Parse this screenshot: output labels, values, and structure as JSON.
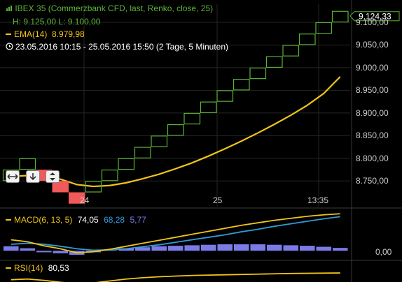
{
  "colors": {
    "background": "#000000",
    "renko_up": "#5cb335",
    "renko_down": "#f05a5a",
    "ema": "#f0c419",
    "macd": "#f0c419",
    "signal": "#2f9bd8",
    "histogram": "#7b7be8",
    "rsi": "#f0c419",
    "grid": "#262626",
    "separator": "#3a3a3a"
  },
  "header": {
    "title": "IBEX 35 (Commerzbank CFD, last, Renko, close, 25)",
    "hl_line": "H: 9.125,00  L: 9.100,00",
    "ema_label": "EMA(14)",
    "ema_value": "8.979,98",
    "period": "23.05.2016 10:15 - 25.05.2016 15:50 (2 Tage, 5 Minuten)"
  },
  "price_badge": "9.124,33",
  "icons": [
    "renko-bars-icon",
    "clock-icon",
    "arrow-left-right-icon",
    "arrow-down-icon",
    "arrow-up-down-icon"
  ],
  "macd_panel": {
    "label": "MACD(6, 13, 5)",
    "macd_value": "74,05",
    "signal_value": "68,28",
    "hist_value": "5,77",
    "zero_label": "0,00"
  },
  "rsi_panel": {
    "label": "RSI(14)",
    "value": "80,53"
  },
  "chart_data": {
    "type": "renko",
    "box_size": 25,
    "x_tick_labels": [
      "24",
      "25",
      "13:35"
    ],
    "y_tick_labels": [
      "9.100,00",
      "9.050,00",
      "9.000,00",
      "8.950,00",
      "8.900,00",
      "8.850,00",
      "8.800,00",
      "8.750,00"
    ],
    "y_ticks": [
      9100,
      9050,
      9000,
      8950,
      8900,
      8850,
      8800,
      8750
    ],
    "ylim": [
      8715,
      9140
    ],
    "bricks": [
      {
        "dir": "up",
        "low": 8750,
        "high": 8775
      },
      {
        "dir": "up",
        "low": 8775,
        "high": 8800
      },
      {
        "dir": "down",
        "low": 8750,
        "high": 8775
      },
      {
        "dir": "down",
        "low": 8725,
        "high": 8750
      },
      {
        "dir": "down",
        "low": 8700,
        "high": 8725
      },
      {
        "dir": "up",
        "low": 8725,
        "high": 8750
      },
      {
        "dir": "up",
        "low": 8750,
        "high": 8775
      },
      {
        "dir": "up",
        "low": 8775,
        "high": 8800
      },
      {
        "dir": "up",
        "low": 8800,
        "high": 8825
      },
      {
        "dir": "up",
        "low": 8825,
        "high": 8850
      },
      {
        "dir": "up",
        "low": 8850,
        "high": 8875
      },
      {
        "dir": "up",
        "low": 8875,
        "high": 8900
      },
      {
        "dir": "up",
        "low": 8900,
        "high": 8925
      },
      {
        "dir": "up",
        "low": 8925,
        "high": 8950
      },
      {
        "dir": "up",
        "low": 8950,
        "high": 8975
      },
      {
        "dir": "up",
        "low": 8975,
        "high": 9000
      },
      {
        "dir": "up",
        "low": 9000,
        "high": 9025
      },
      {
        "dir": "up",
        "low": 9025,
        "high": 9050
      },
      {
        "dir": "up",
        "low": 9050,
        "high": 9075
      },
      {
        "dir": "up",
        "low": 9075,
        "high": 9100
      },
      {
        "dir": "up",
        "low": 9100,
        "high": 9125
      }
    ],
    "ema": [
      8760,
      8762,
      8760,
      8754,
      8742,
      8738,
      8740,
      8746,
      8755,
      8765,
      8777,
      8790,
      8805,
      8821,
      8838,
      8856,
      8875,
      8895,
      8917,
      8943,
      8980
    ],
    "macd": {
      "ylim": [
        -15,
        80
      ],
      "macd": [
        22,
        18,
        10,
        4,
        -4,
        -2,
        3,
        9,
        15,
        21,
        27,
        33,
        39,
        45,
        51,
        56,
        61,
        65,
        69,
        72,
        74.05
      ],
      "signal": [
        13,
        15,
        13,
        9,
        4,
        1,
        2,
        4,
        8,
        12,
        17,
        22,
        27,
        32,
        38,
        43,
        49,
        54,
        59,
        64,
        68.28
      ],
      "histogram": [
        9,
        5,
        -3,
        -5,
        -8,
        -3,
        1,
        5,
        7,
        9,
        10,
        11,
        12,
        13,
        13,
        13,
        12,
        11,
        10,
        8,
        5.77
      ]
    },
    "rsi": {
      "ylim": [
        40,
        100
      ],
      "values": [
        60,
        62,
        58,
        52,
        48,
        50,
        56,
        62,
        66,
        69,
        71,
        73,
        74,
        75,
        76,
        77,
        78,
        79,
        79.5,
        80,
        80.53
      ]
    }
  }
}
